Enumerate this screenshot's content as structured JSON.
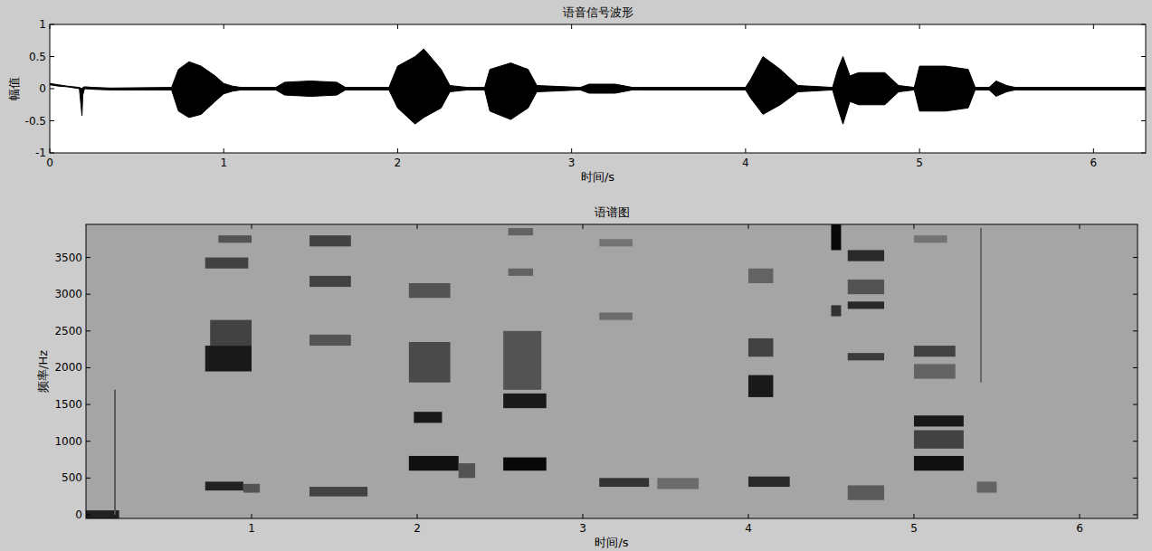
{
  "chart_data": [
    {
      "type": "area",
      "title": "语音信号波形",
      "x_label": "时间/s",
      "y_label": "幅值",
      "xlim": [
        0,
        6.3
      ],
      "ylim": [
        -1,
        1
      ],
      "xticks": [
        0,
        1,
        2,
        3,
        4,
        5,
        6
      ],
      "yticks": [
        -1,
        -0.5,
        0,
        0.5,
        1
      ],
      "color": "#000000",
      "x": [
        0,
        0.05,
        0.1,
        0.17,
        0.185,
        0.19,
        0.2,
        0.25,
        0.35,
        0.7,
        0.74,
        0.8,
        0.87,
        0.95,
        1.0,
        1.05,
        1.1,
        1.3,
        1.35,
        1.5,
        1.65,
        1.7,
        1.95,
        2.0,
        2.1,
        2.15,
        2.25,
        2.3,
        2.4,
        2.5,
        2.53,
        2.65,
        2.75,
        2.8,
        3.05,
        3.1,
        3.25,
        3.35,
        3.4,
        4.0,
        4.03,
        4.1,
        4.2,
        4.3,
        4.5,
        4.53,
        4.56,
        4.6,
        4.65,
        4.8,
        4.88,
        4.97,
        5.0,
        5.15,
        5.28,
        5.32,
        5.4,
        5.44,
        5.5,
        5.55,
        6.3
      ],
      "values": [
        0.08,
        0.06,
        0.04,
        0.02,
        0.0,
        0.02,
        0.03,
        0.02,
        0.01,
        0.02,
        0.3,
        0.42,
        0.35,
        0.2,
        0.08,
        0.04,
        0.02,
        0.02,
        0.1,
        0.12,
        0.1,
        0.02,
        0.02,
        0.35,
        0.5,
        0.62,
        0.3,
        0.05,
        0.02,
        0.02,
        0.3,
        0.4,
        0.3,
        0.05,
        0.02,
        0.07,
        0.07,
        0.02,
        0.02,
        0.02,
        0.15,
        0.5,
        0.3,
        0.05,
        0.02,
        0.3,
        0.5,
        0.2,
        0.25,
        0.25,
        0.05,
        0.02,
        0.35,
        0.35,
        0.3,
        0.02,
        0.02,
        0.12,
        0.05,
        0.02,
        0.02
      ],
      "lower_values": [
        0.06,
        0.04,
        0.03,
        0.0,
        -0.42,
        -0.1,
        0.0,
        -0.01,
        -0.02,
        -0.02,
        -0.35,
        -0.45,
        -0.4,
        -0.2,
        -0.08,
        -0.04,
        -0.02,
        -0.02,
        -0.1,
        -0.12,
        -0.1,
        -0.02,
        -0.02,
        -0.3,
        -0.55,
        -0.45,
        -0.3,
        -0.05,
        -0.02,
        -0.02,
        -0.35,
        -0.48,
        -0.3,
        -0.05,
        -0.02,
        -0.07,
        -0.07,
        -0.02,
        -0.02,
        -0.02,
        -0.15,
        -0.4,
        -0.25,
        -0.05,
        -0.02,
        -0.3,
        -0.55,
        -0.2,
        -0.25,
        -0.25,
        -0.05,
        -0.02,
        -0.35,
        -0.35,
        -0.3,
        -0.02,
        -0.02,
        -0.12,
        -0.05,
        -0.02,
        -0.02
      ]
    },
    {
      "type": "heatmap",
      "title": "语谱图",
      "x_label": "时间/s",
      "y_label": "频率/Hz",
      "xlim": [
        0,
        6.35
      ],
      "ylim": [
        -50,
        3950
      ],
      "xticks": [
        1,
        2,
        3,
        4,
        5,
        6
      ],
      "yticks": [
        0,
        500,
        1000,
        1500,
        2000,
        2500,
        3000,
        3500
      ],
      "zlim": [
        0,
        1
      ],
      "cells": [
        [
          0.0,
          0.2,
          -50,
          60,
          0.8
        ],
        [
          0.17,
          0.18,
          0,
          1700,
          0.5
        ],
        [
          0.72,
          0.95,
          330,
          450,
          0.8
        ],
        [
          0.95,
          1.05,
          300,
          420,
          0.5
        ],
        [
          0.72,
          1.0,
          1950,
          2300,
          0.85
        ],
        [
          0.75,
          1.0,
          2300,
          2650,
          0.6
        ],
        [
          0.72,
          0.98,
          3350,
          3500,
          0.6
        ],
        [
          0.8,
          1.0,
          3700,
          3800,
          0.5
        ],
        [
          1.35,
          1.7,
          250,
          380,
          0.6
        ],
        [
          1.35,
          1.6,
          2300,
          2450,
          0.5
        ],
        [
          1.35,
          1.6,
          3100,
          3250,
          0.6
        ],
        [
          1.35,
          1.6,
          3650,
          3800,
          0.6
        ],
        [
          1.95,
          2.25,
          600,
          800,
          0.9
        ],
        [
          2.25,
          2.35,
          500,
          700,
          0.5
        ],
        [
          1.98,
          2.15,
          1250,
          1400,
          0.85
        ],
        [
          1.95,
          2.2,
          1800,
          2350,
          0.55
        ],
        [
          1.95,
          2.2,
          2950,
          3150,
          0.5
        ],
        [
          2.52,
          2.78,
          600,
          780,
          0.95
        ],
        [
          2.52,
          2.78,
          1450,
          1650,
          0.85
        ],
        [
          2.52,
          2.75,
          1700,
          2500,
          0.5
        ],
        [
          2.55,
          2.7,
          3250,
          3350,
          0.4
        ],
        [
          2.55,
          2.7,
          3800,
          3900,
          0.4
        ],
        [
          3.1,
          3.4,
          380,
          500,
          0.7
        ],
        [
          3.45,
          3.7,
          350,
          500,
          0.35
        ],
        [
          3.1,
          3.3,
          2650,
          2750,
          0.35
        ],
        [
          3.1,
          3.3,
          3650,
          3750,
          0.3
        ],
        [
          4.0,
          4.25,
          380,
          520,
          0.75
        ],
        [
          4.0,
          4.15,
          1600,
          1900,
          0.85
        ],
        [
          4.0,
          4.15,
          2150,
          2400,
          0.6
        ],
        [
          4.0,
          4.15,
          3150,
          3350,
          0.4
        ],
        [
          4.5,
          4.56,
          3600,
          3950,
          0.95
        ],
        [
          4.5,
          4.56,
          2700,
          2850,
          0.7
        ],
        [
          4.6,
          4.82,
          2800,
          2900,
          0.75
        ],
        [
          4.6,
          4.82,
          3450,
          3600,
          0.75
        ],
        [
          4.6,
          4.82,
          2100,
          2200,
          0.65
        ],
        [
          4.6,
          4.82,
          3000,
          3200,
          0.5
        ],
        [
          4.6,
          4.82,
          200,
          400,
          0.45
        ],
        [
          5.0,
          5.3,
          600,
          800,
          0.9
        ],
        [
          5.0,
          5.3,
          1200,
          1350,
          0.85
        ],
        [
          5.0,
          5.3,
          900,
          1150,
          0.6
        ],
        [
          5.0,
          5.25,
          2150,
          2300,
          0.6
        ],
        [
          5.0,
          5.25,
          1850,
          2050,
          0.4
        ],
        [
          5.0,
          5.2,
          3700,
          3800,
          0.3
        ],
        [
          5.38,
          5.5,
          300,
          450,
          0.4
        ],
        [
          5.4,
          5.41,
          1800,
          3900,
          0.4
        ]
      ]
    }
  ]
}
